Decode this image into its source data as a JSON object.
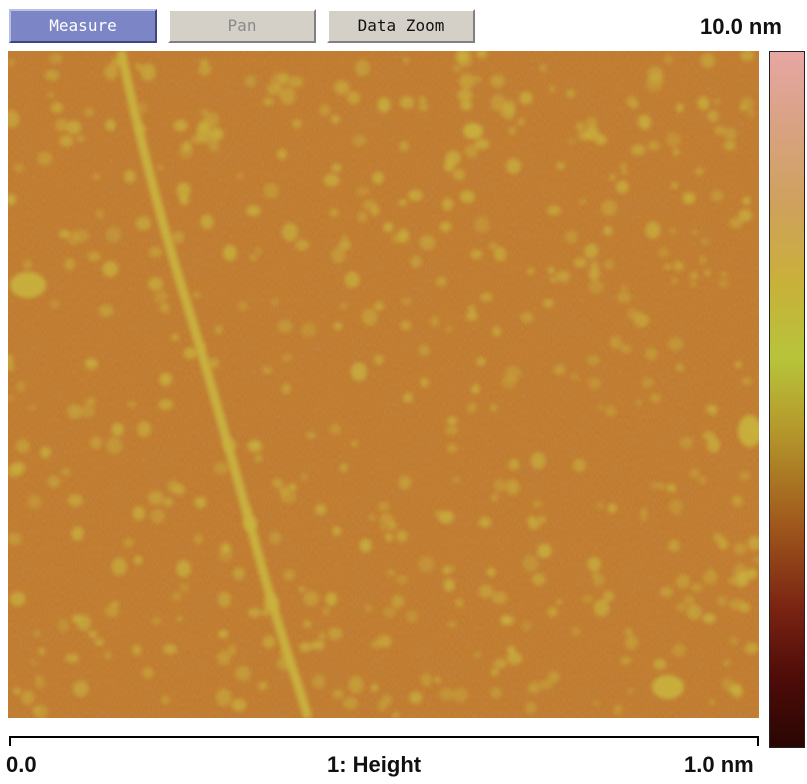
{
  "toolbar": {
    "measure_label": "Measure",
    "pan_label": "Pan",
    "data_zoom_label": "Data Zoom"
  },
  "colorbar": {
    "max_label": "10.0 nm",
    "colors": [
      "#e8a6a4",
      "#cfa15c",
      "#b7c43a",
      "#a0581c",
      "#2a0604"
    ]
  },
  "x_axis": {
    "min_label": "0.0",
    "channel_label": "1: Height",
    "max_label": "1.0 nm"
  },
  "image": {
    "base_color": "#bf7a2e",
    "feature_color": "#c9b23e"
  }
}
